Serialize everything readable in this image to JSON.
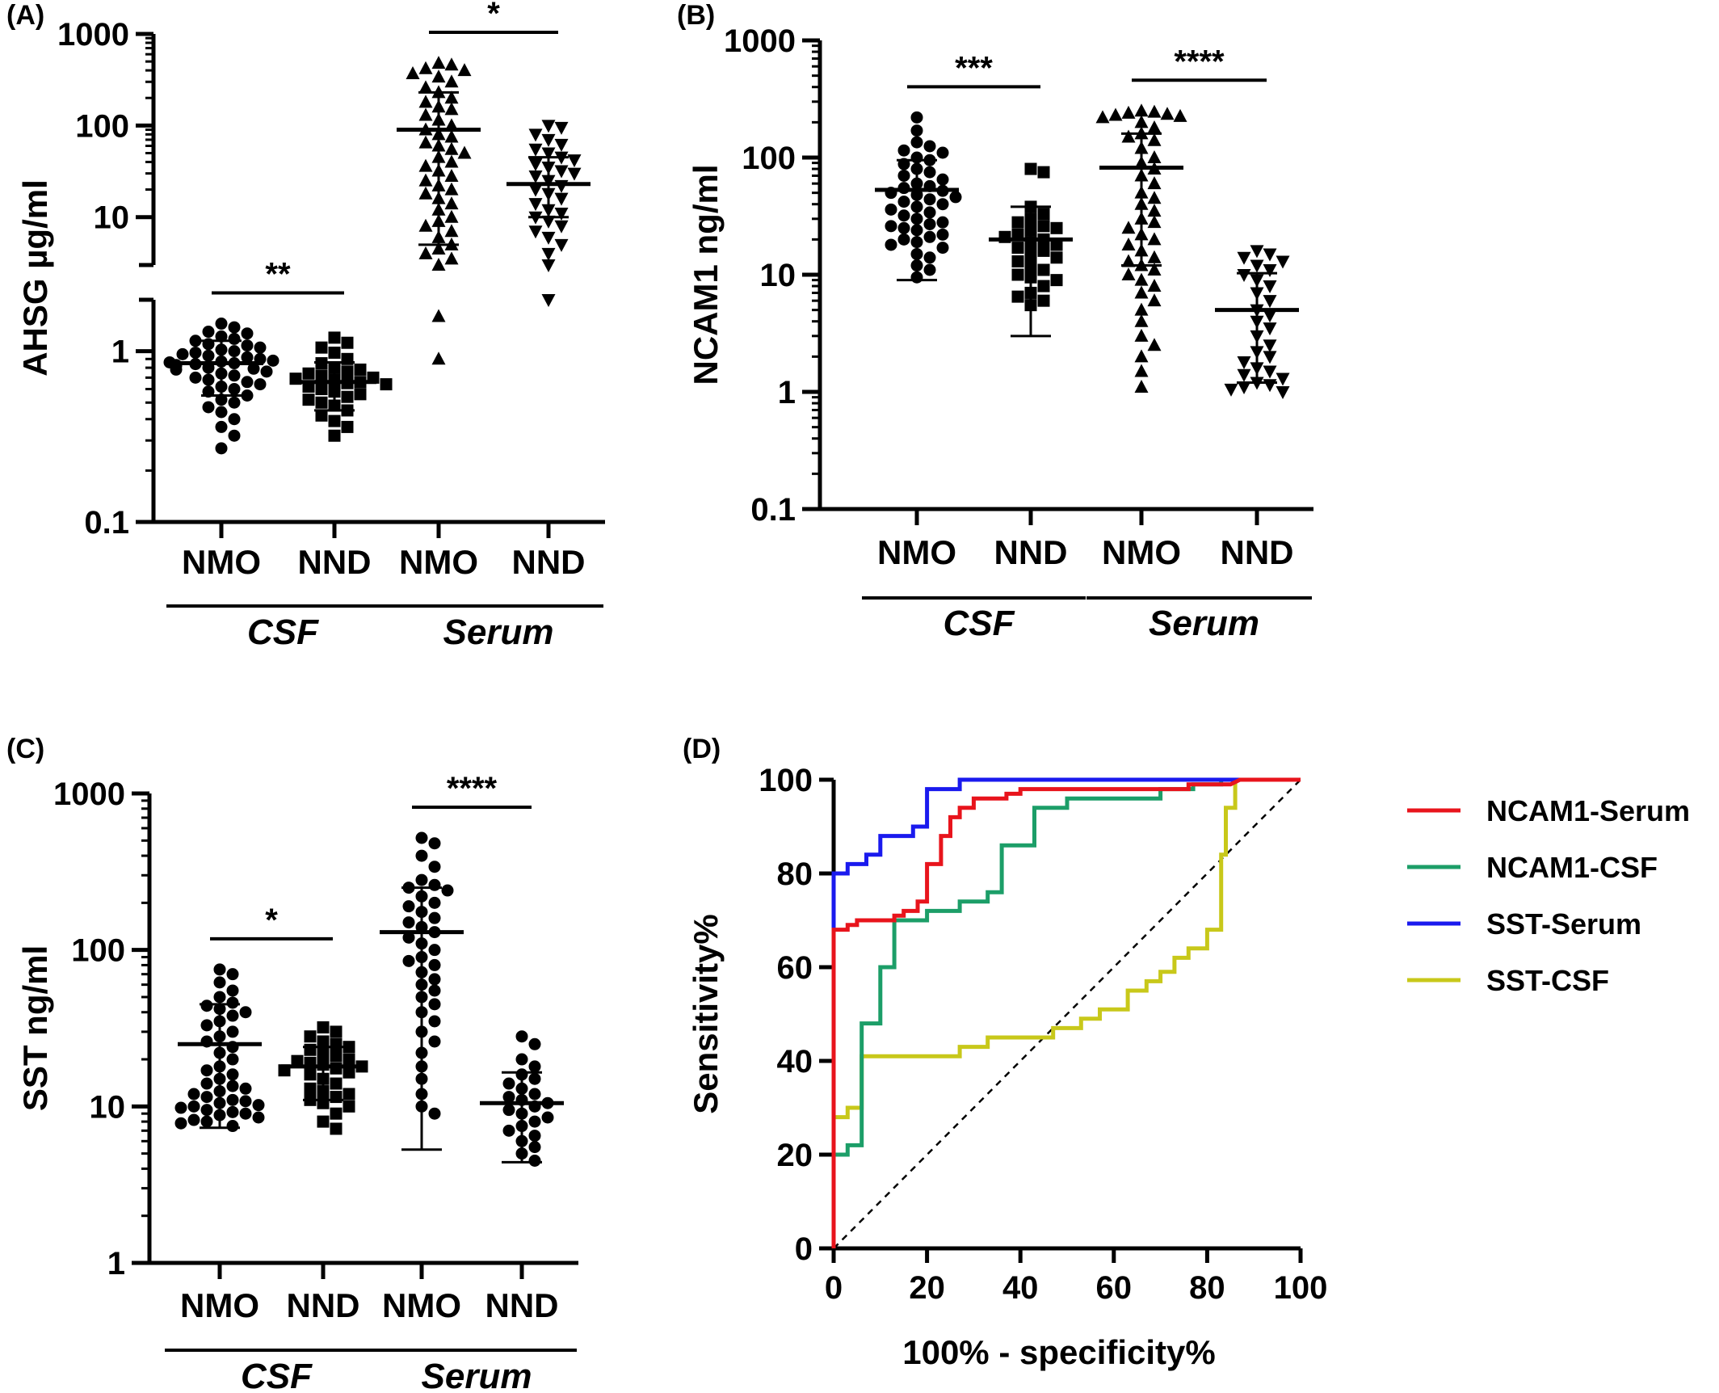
{
  "chart_data": [
    {
      "type": "scatter",
      "panel_label": "(A)",
      "ylabel": "AHSG µg/ml",
      "yscale": "log",
      "ylim": [
        0.1,
        1000
      ],
      "axis_break": true,
      "yticks": [
        "0.1",
        "1",
        "10",
        "100",
        "1000"
      ],
      "categories": [
        "NMO",
        "NND",
        "NMO",
        "NND"
      ],
      "groups": [
        {
          "label": "CSF",
          "span": [
            0,
            1
          ]
        },
        {
          "label": "Serum",
          "span": [
            2,
            3
          ]
        }
      ],
      "markers": [
        "circle",
        "square",
        "triangle",
        "triangle-down"
      ],
      "series": [
        {
          "mean": 0.85,
          "sd_low": 0.55,
          "sd_high": 1.15,
          "values": [
            1.45,
            1.38,
            1.3,
            1.27,
            1.22,
            1.18,
            1.15,
            1.1,
            1.08,
            1.05,
            1.02,
            1.0,
            0.98,
            0.96,
            0.94,
            0.92,
            0.9,
            0.88,
            0.87,
            0.86,
            0.85,
            0.84,
            0.83,
            0.82,
            0.8,
            0.79,
            0.78,
            0.76,
            0.74,
            0.72,
            0.7,
            0.68,
            0.66,
            0.64,
            0.62,
            0.6,
            0.58,
            0.55,
            0.52,
            0.5,
            0.47,
            0.44,
            0.4,
            0.36,
            0.32,
            0.27
          ]
        },
        {
          "mean": 0.66,
          "sd_low": 0.45,
          "sd_high": 0.86,
          "values": [
            1.2,
            1.12,
            1.05,
            0.98,
            0.9,
            0.85,
            0.8,
            0.78,
            0.76,
            0.74,
            0.72,
            0.7,
            0.69,
            0.68,
            0.66,
            0.65,
            0.64,
            0.62,
            0.6,
            0.58,
            0.56,
            0.54,
            0.52,
            0.5,
            0.48,
            0.45,
            0.42,
            0.39,
            0.36,
            0.32
          ]
        },
        {
          "mean": 90,
          "sd_low": 5,
          "sd_high": 230,
          "values": [
            480,
            460,
            420,
            400,
            370,
            340,
            300,
            260,
            230,
            200,
            180,
            160,
            150,
            130,
            115,
            100,
            90,
            80,
            75,
            65,
            60,
            55,
            50,
            45,
            40,
            36,
            32,
            28,
            25,
            22,
            20,
            18,
            16,
            14,
            12,
            10,
            9,
            8,
            7,
            6,
            5,
            4.5,
            4,
            3.5,
            3,
            1.6,
            0.9
          ]
        },
        {
          "mean": 23,
          "sd_low": 10,
          "sd_high": 45,
          "values": [
            100,
            95,
            80,
            70,
            62,
            55,
            50,
            45,
            42,
            38,
            35,
            32,
            30,
            28,
            25,
            22,
            20,
            18,
            16,
            14,
            12,
            11,
            10,
            9,
            8,
            7,
            6,
            5,
            4,
            3,
            2
          ]
        }
      ],
      "significance": [
        {
          "between": [
            0,
            1
          ],
          "label": "**"
        },
        {
          "between": [
            2,
            3
          ],
          "label": "*"
        }
      ]
    },
    {
      "type": "scatter",
      "panel_label": "(B)",
      "ylabel": "NCAM1 ng/ml",
      "yscale": "log",
      "ylim": [
        0.1,
        1000
      ],
      "yticks": [
        "0.1",
        "1",
        "10",
        "100",
        "1000"
      ],
      "categories": [
        "NMO",
        "NND",
        "NMO",
        "NND"
      ],
      "groups": [
        {
          "label": "CSF",
          "span": [
            0,
            1
          ]
        },
        {
          "label": "Serum",
          "span": [
            2,
            3
          ]
        }
      ],
      "markers": [
        "circle",
        "square",
        "triangle",
        "triangle-down"
      ],
      "series": [
        {
          "mean": 53,
          "sd_low": 9,
          "sd_high": 95,
          "values": [
            220,
            170,
            135,
            125,
            115,
            110,
            100,
            95,
            88,
            80,
            75,
            70,
            65,
            60,
            57,
            55,
            52,
            50,
            48,
            46,
            44,
            42,
            40,
            38,
            36,
            34,
            32,
            30,
            28,
            27,
            26,
            25,
            24,
            22,
            21,
            20,
            19,
            18,
            17,
            15,
            14,
            12,
            11,
            9.5
          ]
        },
        {
          "mean": 20,
          "sd_low": 3,
          "sd_high": 38,
          "values": [
            80,
            75,
            38,
            33,
            30,
            28,
            26,
            25,
            24,
            22,
            21,
            20,
            19,
            18,
            17,
            16,
            15,
            14,
            13,
            12,
            11,
            10,
            9.5,
            9,
            8,
            7,
            6.5,
            6,
            5.5
          ]
        },
        {
          "mean": 82,
          "sd_low": 12,
          "sd_high": 160,
          "values": [
            250,
            245,
            240,
            235,
            230,
            225,
            220,
            200,
            180,
            160,
            150,
            140,
            120,
            100,
            90,
            80,
            70,
            60,
            50,
            45,
            40,
            35,
            30,
            28,
            25,
            22,
            20,
            18,
            16,
            14,
            13,
            12,
            11,
            10,
            9,
            8,
            7,
            6,
            5,
            4,
            3,
            2.5,
            2,
            1.5,
            1.1
          ]
        },
        {
          "mean": 5,
          "sd_low": 1.2,
          "sd_high": 10.3,
          "values": [
            16,
            15,
            14,
            13,
            12,
            11,
            10,
            9,
            8,
            7,
            6,
            5,
            4.5,
            4,
            3.5,
            3,
            2.5,
            2.2,
            2,
            1.8,
            1.6,
            1.5,
            1.4,
            1.3,
            1.2,
            1.15,
            1.1,
            1.05,
            1.0
          ]
        }
      ],
      "significance": [
        {
          "between": [
            0,
            1
          ],
          "label": "***"
        },
        {
          "between": [
            2,
            3
          ],
          "label": "****"
        }
      ]
    },
    {
      "type": "scatter",
      "panel_label": "(C)",
      "ylabel": "SST ng/ml",
      "yscale": "log",
      "ylim": [
        1,
        1000
      ],
      "yticks": [
        "1",
        "10",
        "100",
        "1000"
      ],
      "categories": [
        "NMO",
        "NND",
        "NMO",
        "NND"
      ],
      "groups": [
        {
          "label": "CSF",
          "span": [
            0,
            1
          ]
        },
        {
          "label": "Serum",
          "span": [
            2,
            3
          ]
        }
      ],
      "markers": [
        "circle",
        "square",
        "circle",
        "circle"
      ],
      "series": [
        {
          "mean": 25,
          "sd_low": 7.3,
          "sd_high": 45,
          "values": [
            75,
            70,
            62,
            55,
            50,
            46,
            44,
            42,
            40,
            38,
            35,
            33,
            30,
            28,
            26,
            24,
            22,
            20,
            18,
            17,
            16,
            15,
            14,
            13.5,
            13,
            12.5,
            12,
            11.5,
            11,
            10.8,
            10.5,
            10.2,
            10,
            9.8,
            9.5,
            9.2,
            9,
            8.8,
            8.5,
            8.2,
            8,
            7.8,
            7.5
          ]
        },
        {
          "mean": 18,
          "sd_low": 11,
          "sd_high": 24,
          "values": [
            32,
            30,
            28,
            26,
            25,
            24,
            23,
            22,
            21,
            20,
            19.5,
            19,
            18.5,
            18,
            17.5,
            17,
            16.5,
            16,
            15,
            14,
            13,
            12.5,
            12,
            11.5,
            11,
            10.5,
            10,
            9,
            8,
            7.2
          ]
        },
        {
          "mean": 130,
          "sd_low": 5.3,
          "sd_high": 250,
          "values": [
            520,
            480,
            400,
            340,
            280,
            260,
            250,
            240,
            220,
            200,
            190,
            175,
            160,
            150,
            140,
            130,
            120,
            110,
            100,
            90,
            85,
            80,
            72,
            65,
            60,
            55,
            50,
            45,
            40,
            35,
            30,
            26,
            22,
            18,
            15,
            12,
            10,
            9
          ]
        },
        {
          "mean": 10.5,
          "sd_low": 4.4,
          "sd_high": 16.5,
          "values": [
            28,
            25,
            20,
            18,
            16,
            15,
            14,
            13,
            12,
            11.5,
            11,
            10.5,
            10,
            9.5,
            9,
            8.5,
            8,
            7.5,
            7,
            6.5,
            6,
            5.5,
            5,
            4.5
          ]
        }
      ],
      "significance": [
        {
          "between": [
            0,
            1
          ],
          "label": "*"
        },
        {
          "between": [
            2,
            3
          ],
          "label": "****"
        }
      ]
    },
    {
      "type": "line",
      "panel_label": "(D)",
      "xlabel": "100% - specificity%",
      "ylabel": "Sensitivity%",
      "xlim": [
        0,
        100
      ],
      "ylim": [
        0,
        100
      ],
      "xticks": [
        "0",
        "20",
        "40",
        "60",
        "80",
        "100"
      ],
      "yticks": [
        "0",
        "20",
        "40",
        "60",
        "80",
        "100"
      ],
      "diagonal_reference": true,
      "legend_position": "right",
      "series": [
        {
          "name": "NCAM1-Serum",
          "color": "#e8141c",
          "points": [
            [
              0,
              0
            ],
            [
              0,
              68
            ],
            [
              3,
              68
            ],
            [
              3,
              69
            ],
            [
              5,
              69
            ],
            [
              5,
              70
            ],
            [
              13,
              70
            ],
            [
              13,
              71
            ],
            [
              15,
              71
            ],
            [
              15,
              72
            ],
            [
              18,
              72
            ],
            [
              18,
              74
            ],
            [
              20,
              74
            ],
            [
              20,
              82
            ],
            [
              23,
              82
            ],
            [
              23,
              88
            ],
            [
              25,
              88
            ],
            [
              25,
              92
            ],
            [
              27,
              92
            ],
            [
              27,
              94
            ],
            [
              30,
              94
            ],
            [
              30,
              96
            ],
            [
              37,
              96
            ],
            [
              37,
              97
            ],
            [
              40,
              97
            ],
            [
              40,
              98
            ],
            [
              76,
              98
            ],
            [
              76,
              99
            ],
            [
              85,
              99
            ],
            [
              87,
              100
            ],
            [
              100,
              100
            ]
          ]
        },
        {
          "name": "NCAM1-CSF",
          "color": "#1c9e68",
          "points": [
            [
              0,
              20
            ],
            [
              3,
              20
            ],
            [
              3,
              22
            ],
            [
              6,
              22
            ],
            [
              6,
              48
            ],
            [
              10,
              48
            ],
            [
              10,
              60
            ],
            [
              13,
              60
            ],
            [
              13,
              70
            ],
            [
              20,
              70
            ],
            [
              20,
              72
            ],
            [
              27,
              72
            ],
            [
              27,
              74
            ],
            [
              33,
              74
            ],
            [
              33,
              76
            ],
            [
              36,
              76
            ],
            [
              36,
              86
            ],
            [
              43,
              86
            ],
            [
              43,
              94
            ],
            [
              50,
              94
            ],
            [
              50,
              96
            ],
            [
              70,
              96
            ],
            [
              70,
              98
            ],
            [
              77,
              98
            ],
            [
              77,
              99
            ],
            [
              83,
              99
            ],
            [
              83,
              100
            ],
            [
              100,
              100
            ]
          ]
        },
        {
          "name": "SST-Serum",
          "color": "#1a1aee",
          "points": [
            [
              0,
              68
            ],
            [
              0,
              80
            ],
            [
              3,
              80
            ],
            [
              3,
              82
            ],
            [
              7,
              82
            ],
            [
              7,
              84
            ],
            [
              10,
              84
            ],
            [
              10,
              88
            ],
            [
              17,
              88
            ],
            [
              17,
              90
            ],
            [
              20,
              90
            ],
            [
              20,
              98
            ],
            [
              27,
              98
            ],
            [
              27,
              100
            ],
            [
              100,
              100
            ]
          ]
        },
        {
          "name": "SST-CSF",
          "color": "#c8c81a",
          "points": [
            [
              0,
              28
            ],
            [
              3,
              28
            ],
            [
              3,
              30
            ],
            [
              6,
              30
            ],
            [
              6,
              41
            ],
            [
              27,
              41
            ],
            [
              27,
              43
            ],
            [
              33,
              43
            ],
            [
              33,
              45
            ],
            [
              47,
              45
            ],
            [
              47,
              47
            ],
            [
              53,
              47
            ],
            [
              53,
              49
            ],
            [
              57,
              49
            ],
            [
              57,
              51
            ],
            [
              63,
              51
            ],
            [
              63,
              55
            ],
            [
              67,
              55
            ],
            [
              67,
              57
            ],
            [
              70,
              57
            ],
            [
              70,
              59
            ],
            [
              73,
              59
            ],
            [
              73,
              62
            ],
            [
              76,
              62
            ],
            [
              76,
              64
            ],
            [
              80,
              64
            ],
            [
              80,
              68
            ],
            [
              83,
              68
            ],
            [
              83,
              84
            ],
            [
              84,
              84
            ],
            [
              84,
              94
            ],
            [
              86,
              94
            ],
            [
              86,
              100
            ],
            [
              100,
              100
            ]
          ]
        }
      ]
    }
  ]
}
